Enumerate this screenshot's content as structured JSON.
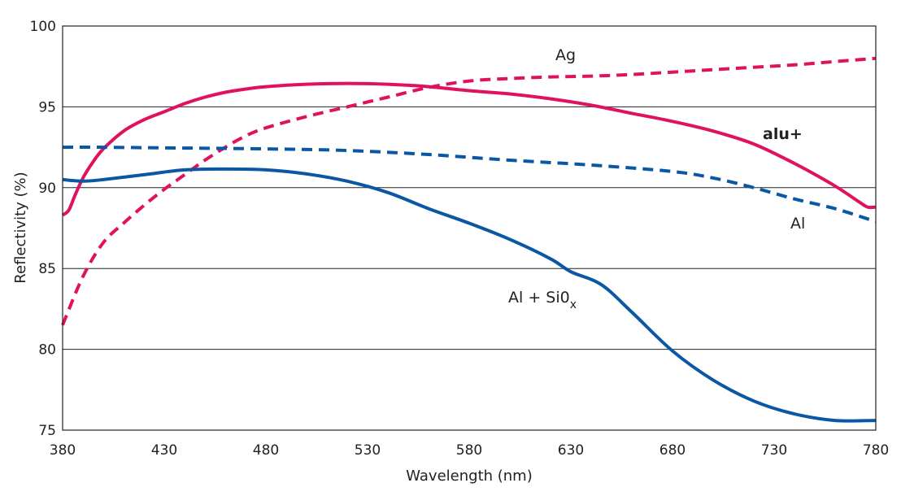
{
  "chart_data": {
    "type": "line",
    "xlabel": "Wavelength (nm)",
    "ylabel": "Reflectivity (%)",
    "xlim": [
      380,
      780
    ],
    "ylim": [
      75,
      100
    ],
    "x_ticks": [
      380,
      430,
      480,
      530,
      580,
      630,
      680,
      730,
      780
    ],
    "y_ticks": [
      75,
      80,
      85,
      90,
      95,
      100
    ],
    "grid": "horizontal",
    "legend": "inline labels",
    "series": [
      {
        "name": "Ag",
        "color": "#e0115f",
        "dash": "dashed",
        "points": [
          [
            380,
            81.5
          ],
          [
            390,
            84.5
          ],
          [
            400,
            86.6
          ],
          [
            410,
            87.8
          ],
          [
            420,
            88.9
          ],
          [
            430,
            89.9
          ],
          [
            440,
            90.8
          ],
          [
            450,
            91.7
          ],
          [
            460,
            92.5
          ],
          [
            470,
            93.2
          ],
          [
            480,
            93.7
          ],
          [
            500,
            94.4
          ],
          [
            520,
            95.0
          ],
          [
            540,
            95.6
          ],
          [
            560,
            96.2
          ],
          [
            580,
            96.6
          ],
          [
            600,
            96.75
          ],
          [
            620,
            96.85
          ],
          [
            640,
            96.9
          ],
          [
            660,
            97.0
          ],
          [
            680,
            97.15
          ],
          [
            700,
            97.3
          ],
          [
            720,
            97.45
          ],
          [
            740,
            97.6
          ],
          [
            760,
            97.8
          ],
          [
            780,
            98.0
          ]
        ]
      },
      {
        "name": "alu+",
        "color": "#e0115f",
        "dash": "solid",
        "points": [
          [
            380,
            88.3
          ],
          [
            383,
            88.6
          ],
          [
            386,
            89.5
          ],
          [
            390,
            90.6
          ],
          [
            395,
            91.6
          ],
          [
            400,
            92.4
          ],
          [
            410,
            93.5
          ],
          [
            420,
            94.2
          ],
          [
            430,
            94.7
          ],
          [
            440,
            95.2
          ],
          [
            450,
            95.6
          ],
          [
            460,
            95.9
          ],
          [
            470,
            96.1
          ],
          [
            480,
            96.25
          ],
          [
            500,
            96.4
          ],
          [
            520,
            96.45
          ],
          [
            540,
            96.4
          ],
          [
            560,
            96.25
          ],
          [
            580,
            96.0
          ],
          [
            600,
            95.8
          ],
          [
            620,
            95.5
          ],
          [
            640,
            95.1
          ],
          [
            660,
            94.6
          ],
          [
            680,
            94.1
          ],
          [
            700,
            93.5
          ],
          [
            720,
            92.7
          ],
          [
            740,
            91.5
          ],
          [
            760,
            90.1
          ],
          [
            772,
            89.1
          ],
          [
            776,
            88.8
          ],
          [
            780,
            88.8
          ]
        ]
      },
      {
        "name": "Al",
        "color": "#0a57a4",
        "dash": "dashed",
        "points": [
          [
            380,
            92.5
          ],
          [
            400,
            92.5
          ],
          [
            440,
            92.45
          ],
          [
            480,
            92.4
          ],
          [
            520,
            92.3
          ],
          [
            560,
            92.05
          ],
          [
            600,
            91.7
          ],
          [
            640,
            91.4
          ],
          [
            680,
            91.0
          ],
          [
            700,
            90.6
          ],
          [
            720,
            90.0
          ],
          [
            740,
            89.3
          ],
          [
            760,
            88.7
          ],
          [
            780,
            87.9
          ]
        ]
      },
      {
        "name": "Al + Si0",
        "name_subscript": "x",
        "color": "#0a57a4",
        "dash": "solid",
        "points": [
          [
            380,
            90.5
          ],
          [
            390,
            90.4
          ],
          [
            400,
            90.5
          ],
          [
            420,
            90.8
          ],
          [
            440,
            91.1
          ],
          [
            460,
            91.15
          ],
          [
            480,
            91.1
          ],
          [
            500,
            90.85
          ],
          [
            520,
            90.4
          ],
          [
            540,
            89.7
          ],
          [
            560,
            88.7
          ],
          [
            580,
            87.8
          ],
          [
            600,
            86.8
          ],
          [
            620,
            85.6
          ],
          [
            630,
            84.8
          ],
          [
            645,
            84.0
          ],
          [
            660,
            82.3
          ],
          [
            680,
            79.9
          ],
          [
            700,
            78.1
          ],
          [
            720,
            76.8
          ],
          [
            740,
            76.0
          ],
          [
            760,
            75.6
          ],
          [
            780,
            75.6
          ]
        ]
      }
    ]
  }
}
